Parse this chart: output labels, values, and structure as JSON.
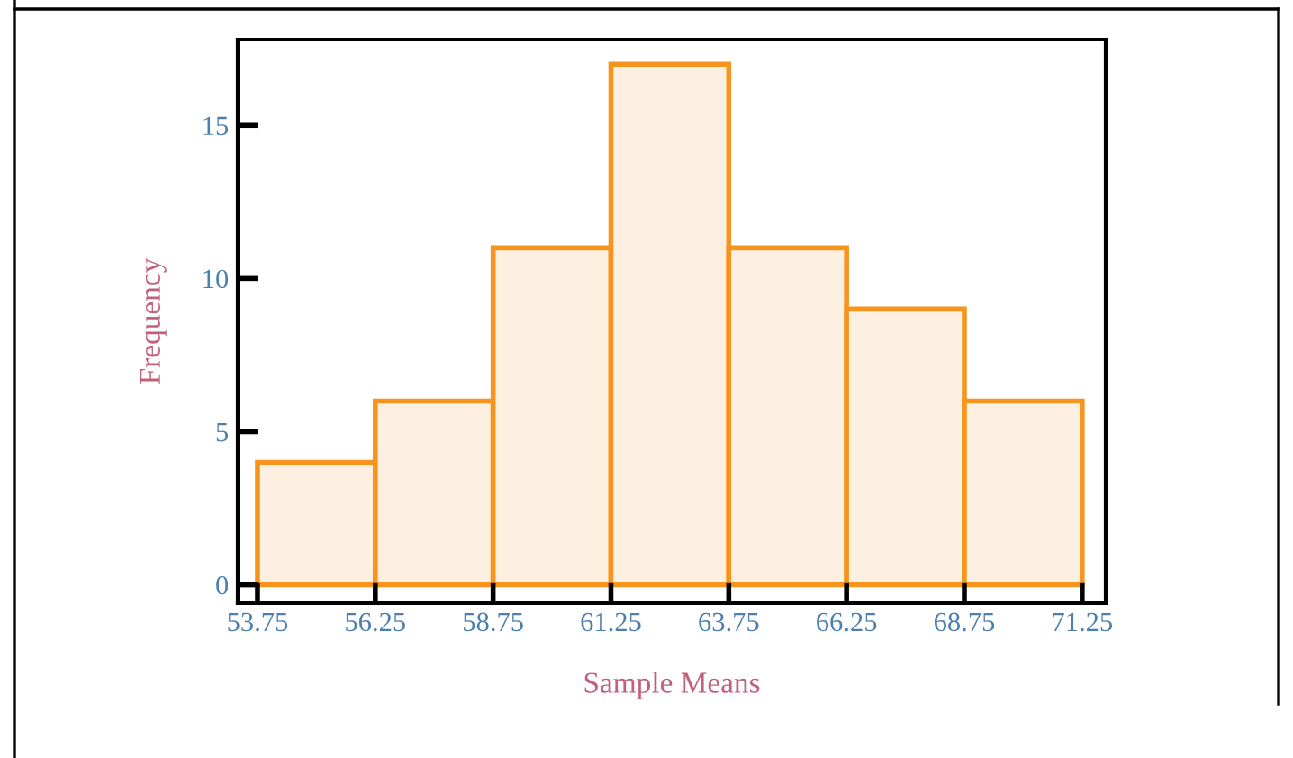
{
  "chart_data": {
    "type": "histogram",
    "xlabel": "Sample Means",
    "ylabel": "Frequency",
    "bins": [
      53.75,
      56.25,
      58.75,
      61.25,
      63.75,
      66.25,
      68.75,
      71.25
    ],
    "values": [
      4,
      6,
      11,
      17,
      11,
      9,
      6
    ],
    "color": "#fdf0e0",
    "xlim": [
      53.33,
      71.75
    ],
    "xticks": [
      {
        "value": 53.75,
        "label": "53.75"
      },
      {
        "value": 56.25,
        "label": "56.25"
      },
      {
        "value": 58.75,
        "label": "58.75"
      },
      {
        "value": 61.25,
        "label": "61.25"
      },
      {
        "value": 63.75,
        "label": "63.75"
      },
      {
        "value": 66.25,
        "label": "66.25"
      },
      {
        "value": 68.75,
        "label": "68.75"
      },
      {
        "value": 71.25,
        "label": "71.25"
      }
    ],
    "ylim": [
      -0.6,
      17.8
    ],
    "yticks": [
      0,
      5,
      10,
      15
    ],
    "grid": false
  }
}
